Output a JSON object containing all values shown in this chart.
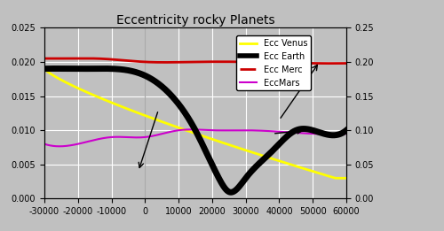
{
  "title": "Eccentricity rocky Planets",
  "xlim": [
    -30000,
    60000
  ],
  "ylim_left": [
    0,
    0.025
  ],
  "ylim_right": [
    0,
    0.25
  ],
  "left_yticks": [
    0,
    0.005,
    0.01,
    0.015,
    0.02,
    0.025
  ],
  "right_yticks": [
    0,
    0.05,
    0.1,
    0.15,
    0.2,
    0.25
  ],
  "xticks": [
    -30000,
    -20000,
    -10000,
    0,
    10000,
    20000,
    30000,
    40000,
    50000,
    60000
  ],
  "background_color": "#c0c0c0",
  "legend_labels": [
    "Ecc Venus",
    "Ecc Earth",
    "Ecc Merc",
    "EccMars"
  ],
  "colors": {
    "venus": "#ffff00",
    "earth": "#000000",
    "merc": "#cc0000",
    "mars": "#cc00cc"
  }
}
